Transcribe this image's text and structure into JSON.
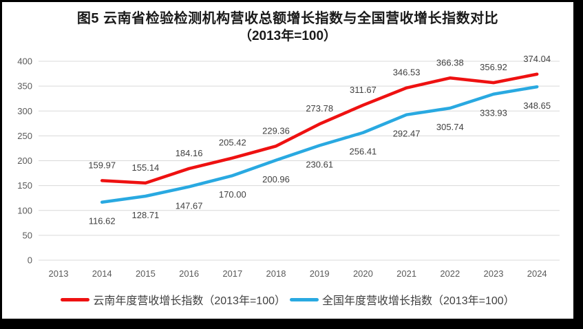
{
  "frame": {
    "border_color": "#000000",
    "background_color": "#ffffff"
  },
  "chart_data": {
    "type": "line",
    "title": "图5  云南省检验检测机构营收总额增长指数与全国营收增长指数对比",
    "subtitle": "（2013年=100）",
    "categories": [
      "2013",
      "2014",
      "2015",
      "2016",
      "2017",
      "2018",
      "2019",
      "2020",
      "2021",
      "2022",
      "2023",
      "2024"
    ],
    "series": [
      {
        "name": "云南年度营收增长指数（2013年=100）",
        "color": "#EE1111",
        "start_year": "2014",
        "label_position": "above",
        "values": [
          159.97,
          155.14,
          184.16,
          205.42,
          229.36,
          273.78,
          311.67,
          346.53,
          366.38,
          356.92,
          374.04
        ]
      },
      {
        "name": "全国年度营收增长指数（2013年=100）",
        "color": "#29A9E1",
        "start_year": "2014",
        "label_position": "below",
        "values": [
          116.62,
          128.71,
          147.67,
          170.0,
          200.96,
          230.61,
          256.41,
          292.47,
          305.74,
          333.93,
          348.65
        ]
      }
    ],
    "y_axis": {
      "min": 0,
      "max": 400,
      "step": 50,
      "ticks": [
        "0",
        "50",
        "100",
        "150",
        "200",
        "250",
        "300",
        "350",
        "400"
      ]
    },
    "x_axis_label_count": 12,
    "grid": true,
    "gridline_color": "#D9D9D9",
    "legend_position": "bottom",
    "data_label_decimals": 2
  }
}
